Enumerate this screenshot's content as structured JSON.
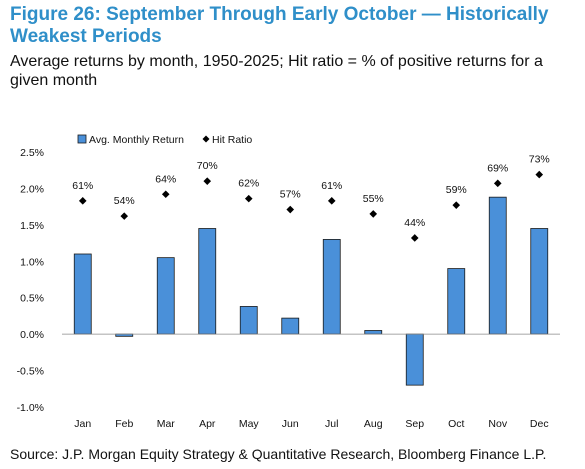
{
  "title": "Figure 26: September Through Early October — Historically Weakest Periods",
  "subtitle": "Average returns by month, 1950-2025; Hit ratio = % of positive returns for a given month",
  "source": "Source: J.P. Morgan Equity Strategy & Quantitative Research, Bloomberg Finance L.P.",
  "colors": {
    "bar": "#4a90d9",
    "bar_stroke": "#1a1a1a",
    "marker": "#000000"
  },
  "chart_data": {
    "type": "bar",
    "categories": [
      "Jan",
      "Feb",
      "Mar",
      "Apr",
      "May",
      "Jun",
      "Jul",
      "Aug",
      "Sep",
      "Oct",
      "Nov",
      "Dec"
    ],
    "series": [
      {
        "name": "Avg. Monthly Return",
        "type": "bar",
        "unit": "%",
        "values": [
          1.1,
          -0.03,
          1.05,
          1.45,
          0.38,
          0.22,
          1.3,
          0.05,
          -0.7,
          0.9,
          1.88,
          1.45
        ]
      },
      {
        "name": "Hit Ratio",
        "type": "marker",
        "values": [
          61,
          54,
          64,
          70,
          62,
          57,
          61,
          55,
          44,
          59,
          69,
          73
        ],
        "labels": [
          "61%",
          "54%",
          "64%",
          "70%",
          "62%",
          "57%",
          "61%",
          "55%",
          "44%",
          "59%",
          "69%",
          "73%"
        ]
      }
    ],
    "ylim": [
      -1.0,
      2.5
    ],
    "yticks": [
      -1.0,
      -0.5,
      0.0,
      0.5,
      1.0,
      1.5,
      2.0,
      2.5
    ],
    "ytick_labels": [
      "-1.0%",
      "-0.5%",
      "0.0%",
      "0.5%",
      "1.0%",
      "1.5%",
      "2.0%",
      "2.5%"
    ],
    "legend_position": "top-left",
    "grid": false
  }
}
